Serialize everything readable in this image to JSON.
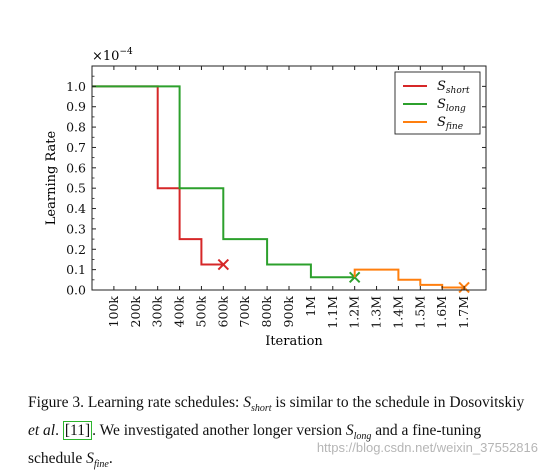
{
  "chart_data": {
    "type": "line",
    "xlabel": "Iteration",
    "ylabel": "Learning Rate",
    "scale_label": "×10",
    "scale_exp": "−4",
    "xlim": [
      0,
      1800000
    ],
    "ylim": [
      0,
      1.1
    ],
    "x_ticks": [
      100000,
      200000,
      300000,
      400000,
      500000,
      600000,
      700000,
      800000,
      900000,
      1000000,
      1100000,
      1200000,
      1300000,
      1400000,
      1500000,
      1600000,
      1700000
    ],
    "x_tick_labels": [
      "100k",
      "200k",
      "300k",
      "400k",
      "500k",
      "600k",
      "700k",
      "800k",
      "900k",
      "1M",
      "1.1M",
      "1.2M",
      "1.3M",
      "1.4M",
      "1.5M",
      "1.6M",
      "1.7M"
    ],
    "y_ticks": [
      0,
      0.1,
      0.2,
      0.3,
      0.4,
      0.5,
      0.6,
      0.7,
      0.8,
      0.9,
      1.0
    ],
    "y_tick_labels": [
      "0.0",
      "0.1",
      "0.2",
      "0.3",
      "0.4",
      "0.5",
      "0.6",
      "0.7",
      "0.8",
      "0.9",
      "1.0"
    ],
    "legend_position": "top-right",
    "series": [
      {
        "name": "S",
        "sub": "short",
        "color": "#d62728",
        "x": [
          0,
          300000,
          300000,
          400000,
          400000,
          500000,
          500000,
          600000
        ],
        "y": [
          1.0,
          1.0,
          0.5,
          0.5,
          0.25,
          0.25,
          0.125,
          0.125
        ],
        "end": [
          600000,
          0.125
        ]
      },
      {
        "name": "S",
        "sub": "long",
        "color": "#2ca02c",
        "x": [
          0,
          400000,
          400000,
          600000,
          600000,
          800000,
          800000,
          1000000,
          1000000,
          1200000
        ],
        "y": [
          1.0,
          1.0,
          0.5,
          0.5,
          0.25,
          0.25,
          0.125,
          0.125,
          0.0625,
          0.0625
        ],
        "end": [
          1200000,
          0.0625
        ]
      },
      {
        "name": "S",
        "sub": "fine",
        "color": "#ff7f0e",
        "x": [
          1200000,
          1200000,
          1400000,
          1400000,
          1500000,
          1500000,
          1600000,
          1600000,
          1700000
        ],
        "y": [
          0.0625,
          0.1,
          0.1,
          0.05,
          0.05,
          0.025,
          0.025,
          0.0125,
          0.0125
        ],
        "end": [
          1700000,
          0.0125
        ]
      }
    ]
  },
  "caption": {
    "figure_label": "Figure 3.",
    "part1": " Learning rate schedules: ",
    "s_short": "S",
    "s_short_sub": "short",
    "part2": " is similar to the schedule in Dosovitskiy ",
    "etal": "et al",
    "part3": ". ",
    "ref": "[11]",
    "part4": ". We investigated another longer version ",
    "s_long": "S",
    "s_long_sub": "long",
    "part5": " and a fine-tuning schedule ",
    "s_fine": "S",
    "s_fine_sub": "fine",
    "part6": "."
  },
  "watermark": "https://blog.csdn.net/weixin_37552816"
}
